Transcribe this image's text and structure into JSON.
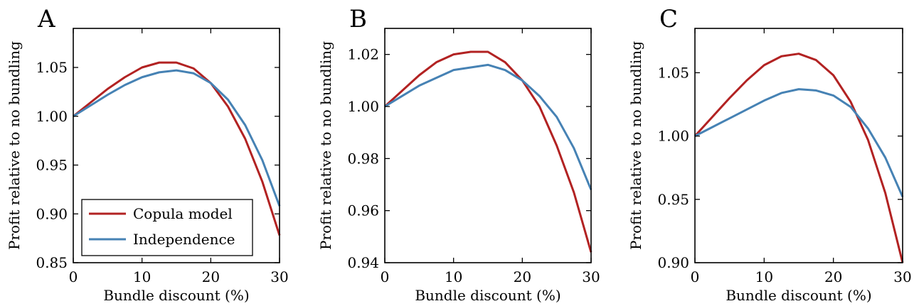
{
  "colors": {
    "copula": "#b22222",
    "independence": "#4682b4"
  },
  "legend": {
    "panel": 0,
    "entries": [
      {
        "label": "Copula model",
        "color_key": "copula"
      },
      {
        "label": "Independence",
        "color_key": "independence"
      }
    ]
  },
  "chart_data": [
    {
      "type": "line",
      "panel_label": "A",
      "xlabel": "Bundle discount (%)",
      "ylabel": "Profit relative to no bundling",
      "xlim": [
        0,
        30
      ],
      "ylim": [
        0.85,
        1.09
      ],
      "xticks": [
        0,
        10,
        20,
        30
      ],
      "yticks": [
        0.85,
        0.9,
        0.95,
        1.0,
        1.05
      ],
      "ytick_labels": [
        "0.85",
        "0.90",
        "0.95",
        "1.00",
        "1.05"
      ],
      "x": [
        0,
        2.5,
        5,
        7.5,
        10,
        12.5,
        15,
        17.5,
        20,
        22.5,
        25,
        27.5,
        30
      ],
      "series": [
        {
          "name": "Copula model",
          "color_key": "copula",
          "values": [
            1.0,
            1.014,
            1.028,
            1.04,
            1.05,
            1.055,
            1.055,
            1.049,
            1.034,
            1.01,
            0.977,
            0.933,
            0.878
          ]
        },
        {
          "name": "Independence",
          "color_key": "independence",
          "values": [
            1.0,
            1.011,
            1.022,
            1.032,
            1.04,
            1.045,
            1.047,
            1.044,
            1.034,
            1.017,
            0.991,
            0.955,
            0.908
          ]
        }
      ]
    },
    {
      "type": "line",
      "panel_label": "B",
      "xlabel": "Bundle discount (%)",
      "ylabel": "Profit relative to no bundling",
      "xlim": [
        0,
        30
      ],
      "ylim": [
        0.94,
        1.03
      ],
      "xticks": [
        0,
        10,
        20,
        30
      ],
      "yticks": [
        0.94,
        0.96,
        0.98,
        1.0,
        1.02
      ],
      "ytick_labels": [
        "0.94",
        "0.96",
        "0.98",
        "1.00",
        "1.02"
      ],
      "x": [
        0,
        2.5,
        5,
        7.5,
        10,
        12.5,
        15,
        17.5,
        20,
        22.5,
        25,
        27.5,
        30
      ],
      "series": [
        {
          "name": "Copula model",
          "color_key": "copula",
          "values": [
            1.0,
            1.006,
            1.012,
            1.017,
            1.02,
            1.021,
            1.021,
            1.017,
            1.01,
            1.0,
            0.985,
            0.967,
            0.944
          ]
        },
        {
          "name": "Independence",
          "color_key": "independence",
          "values": [
            1.0,
            1.004,
            1.008,
            1.011,
            1.014,
            1.015,
            1.016,
            1.014,
            1.01,
            1.004,
            0.996,
            0.984,
            0.968
          ]
        }
      ]
    },
    {
      "type": "line",
      "panel_label": "C",
      "xlabel": "Bundle discount (%)",
      "ylabel": "Profit relative to no bundling",
      "xlim": [
        0,
        30
      ],
      "ylim": [
        0.9,
        1.085
      ],
      "xticks": [
        0,
        10,
        20,
        30
      ],
      "yticks": [
        0.9,
        0.95,
        1.0,
        1.05
      ],
      "ytick_labels": [
        "0.90",
        "0.95",
        "1.00",
        "1.05"
      ],
      "x": [
        0,
        2.5,
        5,
        7.5,
        10,
        12.5,
        15,
        17.5,
        20,
        22.5,
        25,
        27.5,
        30
      ],
      "series": [
        {
          "name": "Copula model",
          "color_key": "copula",
          "values": [
            1.0,
            1.015,
            1.03,
            1.044,
            1.056,
            1.063,
            1.065,
            1.06,
            1.048,
            1.027,
            0.997,
            0.955,
            0.9
          ]
        },
        {
          "name": "Independence",
          "color_key": "independence",
          "values": [
            1.0,
            1.007,
            1.014,
            1.021,
            1.028,
            1.034,
            1.037,
            1.036,
            1.032,
            1.023,
            1.006,
            0.983,
            0.952
          ]
        }
      ]
    }
  ]
}
